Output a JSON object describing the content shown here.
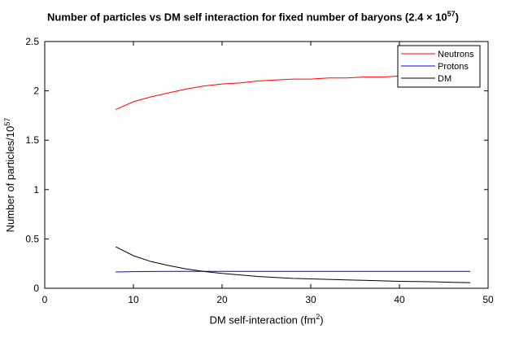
{
  "chart_data": {
    "type": "line",
    "title_prefix": "Number of particles vs DM self interaction for fixed number of baryons (2.4 × 10",
    "title_sup": "57",
    "title_suffix": ")",
    "xlabel_prefix": "DM self-interaction (fm",
    "xlabel_sup": "2",
    "xlabel_suffix": ")",
    "ylabel_prefix": "Number of particles/10",
    "ylabel_sup": "57",
    "xlim": [
      0,
      50
    ],
    "ylim": [
      0,
      2.5
    ],
    "xticks": [
      0,
      10,
      20,
      30,
      40,
      50
    ],
    "yticks": [
      0,
      0.5,
      1,
      1.5,
      2,
      2.5
    ],
    "xtick_labels": [
      "0",
      "10",
      "20",
      "30",
      "40",
      "50"
    ],
    "ytick_labels": [
      "0",
      "0.5",
      "1",
      "1.5",
      "2",
      "2.5"
    ],
    "grid": false,
    "legend_position": "top-right",
    "x": [
      8,
      10,
      12,
      14,
      16,
      18,
      20,
      22,
      24,
      26,
      28,
      30,
      32,
      34,
      36,
      38,
      40,
      42,
      44,
      46,
      48
    ],
    "series": [
      {
        "name": "Neutrons",
        "color": "#ff0000",
        "values": [
          1.81,
          1.89,
          1.94,
          1.98,
          2.02,
          2.05,
          2.07,
          2.08,
          2.1,
          2.11,
          2.12,
          2.12,
          2.13,
          2.13,
          2.14,
          2.14,
          2.15,
          2.15,
          2.15,
          2.16,
          2.16
        ]
      },
      {
        "name": "Protons",
        "color": "#0000ff",
        "values": [
          0.165,
          0.168,
          0.17,
          0.171,
          0.171,
          0.171,
          0.171,
          0.171,
          0.171,
          0.171,
          0.171,
          0.171,
          0.171,
          0.171,
          0.171,
          0.171,
          0.171,
          0.171,
          0.171,
          0.171,
          0.171
        ]
      },
      {
        "name": "DM",
        "color": "#000000",
        "values": [
          0.42,
          0.33,
          0.27,
          0.23,
          0.195,
          0.17,
          0.15,
          0.135,
          0.12,
          0.11,
          0.1,
          0.095,
          0.09,
          0.085,
          0.08,
          0.075,
          0.07,
          0.068,
          0.065,
          0.06,
          0.057
        ]
      }
    ]
  }
}
